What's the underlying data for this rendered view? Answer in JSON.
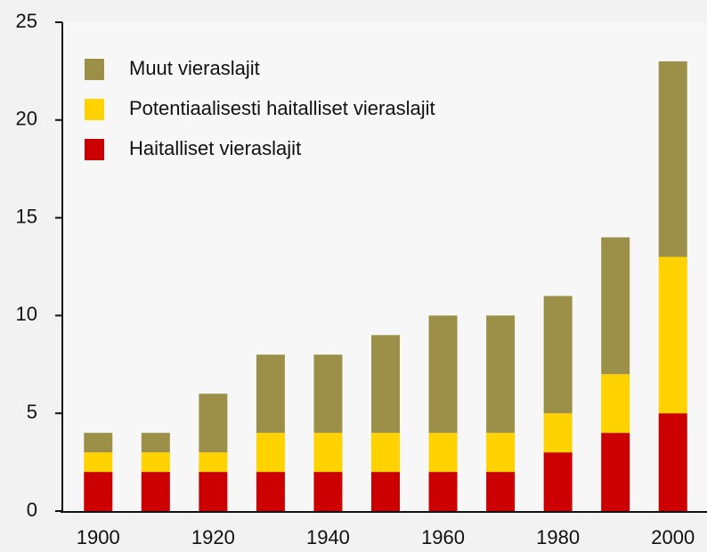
{
  "chart_data": {
    "type": "stacked-bar",
    "categories": [
      "1900",
      null,
      "1920",
      null,
      "1940",
      null,
      "1960",
      null,
      "1980",
      null,
      "2000"
    ],
    "series": [
      {
        "name": "Haitalliset vieraslajit",
        "color": "#cc0000",
        "values": [
          2,
          2,
          2,
          2,
          2,
          2,
          2,
          2,
          3,
          4,
          5
        ]
      },
      {
        "name": "Potentiaalisesti haitalliset vieraslajit",
        "color": "#ffd200",
        "values": [
          1,
          1,
          1,
          2,
          2,
          2,
          2,
          2,
          2,
          3,
          8
        ]
      },
      {
        "name": "Muut vieraslajit",
        "color": "#9c9048",
        "values": [
          1,
          1,
          3,
          4,
          4,
          5,
          6,
          6,
          6,
          7,
          10
        ]
      }
    ],
    "ylim": [
      0,
      25
    ],
    "yticks": [
      0,
      5,
      10,
      15,
      20,
      25
    ],
    "legend": "upper left"
  }
}
